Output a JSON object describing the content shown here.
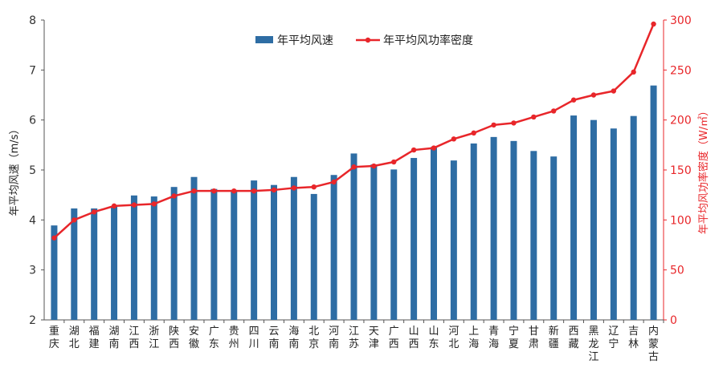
{
  "chart_data": {
    "type": "bar+line",
    "categories": [
      "重庆",
      "湖北",
      "福建",
      "湖南",
      "江西",
      "浙江",
      "陕西",
      "安徽",
      "广东",
      "贵州",
      "四川",
      "云南",
      "海南",
      "北京",
      "河南",
      "江苏",
      "天津",
      "广西",
      "山西",
      "山东",
      "河北",
      "上海",
      "青海",
      "宁夏",
      "甘肃",
      "新疆",
      "西藏",
      "黑龙江",
      "辽宁",
      "吉林",
      "内蒙古"
    ],
    "series": [
      {
        "name": "年平均风速",
        "type": "bar",
        "axis": "left",
        "color": "#2e6da4",
        "values": [
          3.89,
          4.23,
          4.23,
          4.27,
          4.49,
          4.47,
          4.66,
          4.86,
          4.62,
          4.6,
          4.79,
          4.7,
          4.86,
          4.52,
          4.9,
          5.33,
          5.11,
          5.01,
          5.24,
          5.46,
          5.19,
          5.53,
          5.66,
          5.58,
          5.38,
          5.27,
          6.09,
          6.0,
          5.83,
          6.08,
          6.69
        ]
      },
      {
        "name": "年平均风功率密度",
        "type": "line",
        "axis": "right",
        "color": "#e8262a",
        "values": [
          82,
          100,
          108,
          114,
          115,
          116,
          124,
          129,
          129,
          129,
          129,
          130,
          132,
          133,
          138,
          153,
          154,
          158,
          170,
          172,
          181,
          187,
          195,
          197,
          203,
          209,
          220,
          225,
          229,
          248,
          296
        ]
      }
    ],
    "y_left": {
      "label": "年平均风速（m/s）",
      "ylim": [
        2,
        8
      ],
      "ticks": [
        2,
        3,
        4,
        5,
        6,
        7,
        8
      ]
    },
    "y_right": {
      "label": "年平均风功率密度（W/㎡）",
      "ylim": [
        0,
        300
      ],
      "ticks": [
        0,
        50,
        100,
        150,
        200,
        250,
        300
      ]
    },
    "legend": {
      "placement": "top-center"
    },
    "grid": false
  }
}
